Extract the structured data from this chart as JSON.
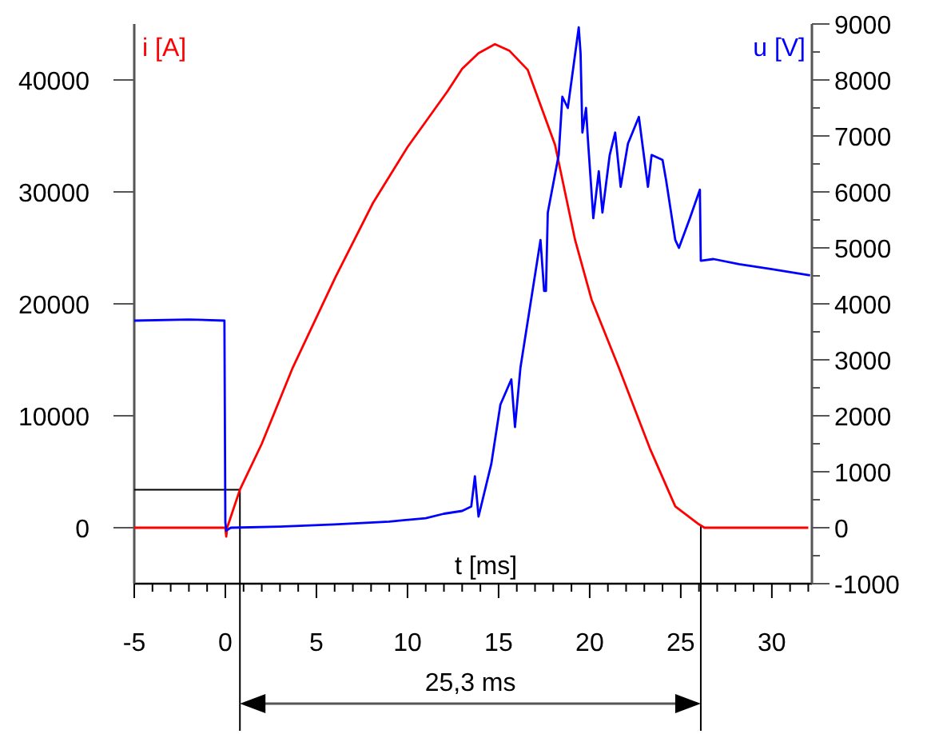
{
  "chart_data": {
    "type": "line",
    "xlabel": "t [ms]",
    "ylabel": "i [A]",
    "y2label": "u [V]",
    "annotations": [
      "25,3 ms"
    ],
    "xlim": [
      -5,
      32.2
    ],
    "xticks": [
      -5,
      {
        "value": -4,
        "label": null
      },
      {
        "value": -3,
        "label": null
      },
      {
        "value": -2,
        "label": null
      },
      {
        "value": -1,
        "label": null
      },
      0,
      {
        "value": 1,
        "label": null
      },
      {
        "value": 2,
        "label": null
      },
      {
        "value": 3,
        "label": null
      },
      {
        "value": 4,
        "label": null
      },
      5,
      {
        "value": 6,
        "label": null
      },
      {
        "value": 7,
        "label": null
      },
      {
        "value": 8,
        "label": null
      },
      {
        "value": 9,
        "label": null
      },
      10,
      {
        "value": 11,
        "label": null
      },
      {
        "value": 12,
        "label": null
      },
      {
        "value": 13,
        "label": null
      },
      {
        "value": 14,
        "label": null
      },
      15,
      {
        "value": 16,
        "label": null
      },
      {
        "value": 17,
        "label": null
      },
      {
        "value": 18,
        "label": null
      },
      {
        "value": 19,
        "label": null
      },
      20,
      {
        "value": 21,
        "label": null
      },
      {
        "value": 22,
        "label": null
      },
      {
        "value": 23,
        "label": null
      },
      {
        "value": 24,
        "label": null
      },
      25,
      {
        "value": 26,
        "label": null
      },
      {
        "value": 27,
        "label": null
      },
      {
        "value": 28,
        "label": null
      },
      {
        "value": 29,
        "label": null
      },
      30,
      {
        "value": 31,
        "label": null
      },
      {
        "value": 32,
        "label": null
      }
    ],
    "ylim": [
      -5000,
      45000
    ],
    "yticks": [
      0,
      10000,
      20000,
      30000,
      40000
    ],
    "y2lim": [
      -1000,
      9000
    ],
    "y2ticks": [
      -1000,
      {
        "value": -500,
        "label": null
      },
      0,
      {
        "value": 500,
        "label": null
      },
      1000,
      {
        "value": 1500,
        "label": null
      },
      2000,
      {
        "value": 2500,
        "label": null
      },
      3000,
      {
        "value": 3500,
        "label": null
      },
      4000,
      {
        "value": 4500,
        "label": null
      },
      5000,
      {
        "value": 5500,
        "label": null
      },
      6000,
      {
        "value": 6500,
        "label": null
      },
      7000,
      {
        "value": 7500,
        "label": null
      },
      8000,
      {
        "value": 8500,
        "label": null
      },
      9000
    ],
    "grid": false,
    "ref_lines": [
      {
        "axis": "x",
        "value": 0.8,
        "color": "#000000"
      },
      {
        "axis": "x",
        "value": 26.1,
        "color": "#000000"
      },
      {
        "axis": "y",
        "value": 3400,
        "color": "#000000"
      }
    ],
    "series": [
      {
        "color": "#ff0000",
        "x": [
          -5,
          -2,
          0,
          0.05,
          0.1,
          0.8,
          2,
          3.7,
          6.05,
          8.1,
          10,
          12.2,
          13,
          13.9,
          14.8,
          15.6,
          16.6,
          18.1,
          19.2,
          20.1,
          21.6,
          23.3,
          24.7,
          26,
          26.3,
          29,
          32
        ],
        "values": [
          0,
          0,
          0,
          -800,
          0,
          3400,
          7500,
          14300,
          22400,
          29000,
          34000,
          39000,
          41000,
          42400,
          43200,
          42600,
          40900,
          34200,
          25700,
          20400,
          14300,
          7100,
          1900,
          300,
          0,
          0,
          0
        ]
      },
      {
        "axis": "y2",
        "color": "#0000ff",
        "x": [
          -5,
          -2,
          -0.05,
          0,
          0.05,
          0.3,
          3,
          6,
          9,
          11,
          12,
          13,
          13.5,
          13.7,
          13.9,
          14.6,
          15.1,
          15.7,
          15.9,
          16.2,
          17.3,
          17.5,
          17.6,
          17.7,
          18.3,
          18.5,
          18.8,
          19.4,
          19.5,
          19.6,
          19.8,
          19.9,
          20.2,
          20.5,
          20.7,
          21.1,
          21.4,
          21.7,
          22.1,
          22.7,
          23.2,
          23.4,
          24,
          24.2,
          24.7,
          24.9,
          25.5,
          26.05,
          26.1,
          26.8,
          28.2,
          30,
          32.1
        ],
        "values": [
          3700,
          3720,
          3700,
          100,
          -50,
          0,
          20,
          60,
          110,
          170,
          250,
          300,
          380,
          920,
          200,
          1140,
          2200,
          2650,
          1800,
          2860,
          5140,
          4230,
          4230,
          5630,
          6660,
          7700,
          7500,
          8940,
          8480,
          7060,
          7500,
          6950,
          5530,
          6370,
          5630,
          6660,
          7060,
          6090,
          6860,
          7340,
          6090,
          6660,
          6570,
          6200,
          5140,
          5000,
          5530,
          6040,
          4770,
          4800,
          4710,
          4620,
          4510
        ]
      }
    ]
  }
}
